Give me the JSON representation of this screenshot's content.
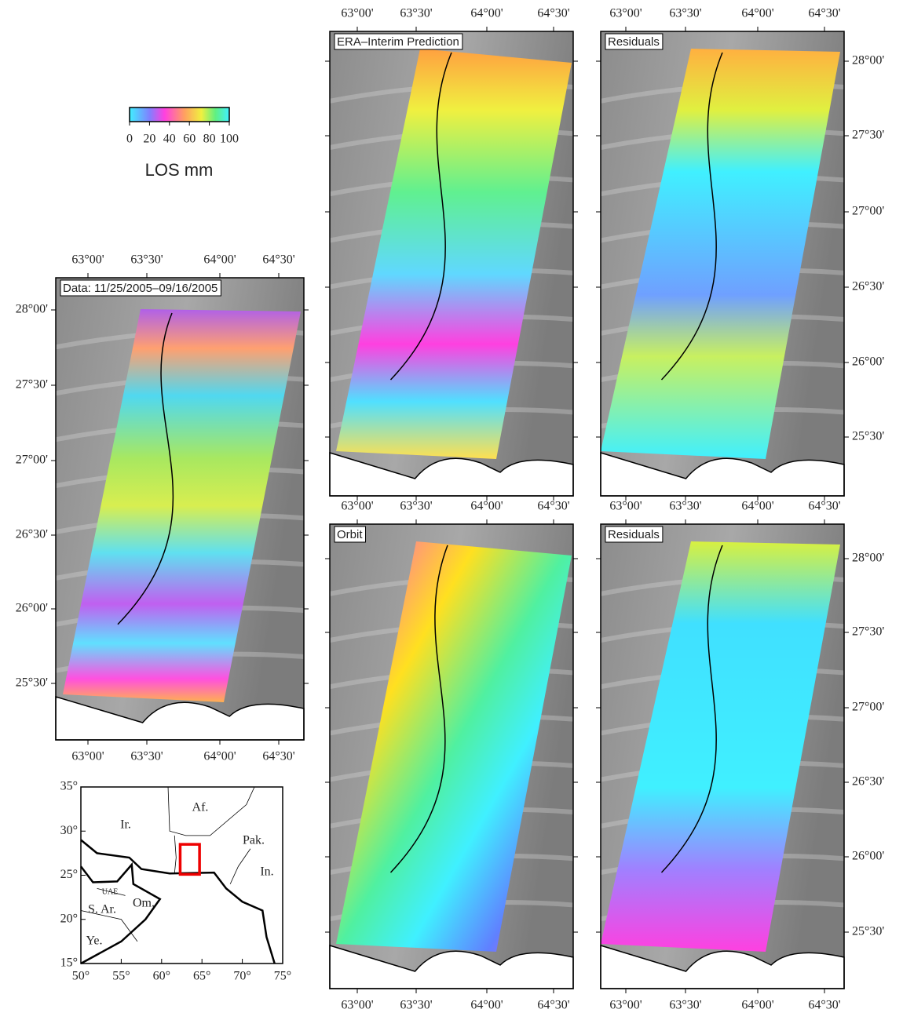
{
  "colorbar": {
    "label": "LOS mm",
    "range": [
      0,
      100
    ],
    "ticks": [
      0,
      20,
      40,
      60,
      80,
      100
    ]
  },
  "lon_labels": [
    "63°00'",
    "63°30'",
    "64°00'",
    "64°30'"
  ],
  "lat_labels": [
    "28°00'",
    "27°30'",
    "27°00'",
    "26°30'",
    "26°00'",
    "25°30'"
  ],
  "panels": [
    {
      "title": "Data: 11/25/2005–09/16/2005"
    },
    {
      "title": "ERA–Interim Prediction"
    },
    {
      "title": "Residuals"
    },
    {
      "title": "Orbit"
    },
    {
      "title": "Residuals"
    }
  ],
  "inset": {
    "lat_range": [
      15,
      35
    ],
    "lon_range": [
      50,
      75
    ],
    "lat_ticks": [
      {
        "value": 35,
        "label": "35°"
      },
      {
        "value": 30,
        "label": "30°"
      },
      {
        "value": 25,
        "label": "25°"
      },
      {
        "value": 20,
        "label": "20°"
      },
      {
        "value": 15,
        "label": "15°"
      }
    ],
    "lon_ticks": [
      {
        "value": 50,
        "label": "50°"
      },
      {
        "value": 55,
        "label": "55°"
      },
      {
        "value": 60,
        "label": "60°"
      },
      {
        "value": 65,
        "label": "65°"
      },
      {
        "value": 70,
        "label": "70°"
      },
      {
        "value": 75,
        "label": "75°"
      }
    ],
    "regions": [
      "Ir.",
      "Af.",
      "Pak.",
      "In.",
      "UAE",
      "S. Ar.",
      "Om.",
      "Ye."
    ]
  }
}
